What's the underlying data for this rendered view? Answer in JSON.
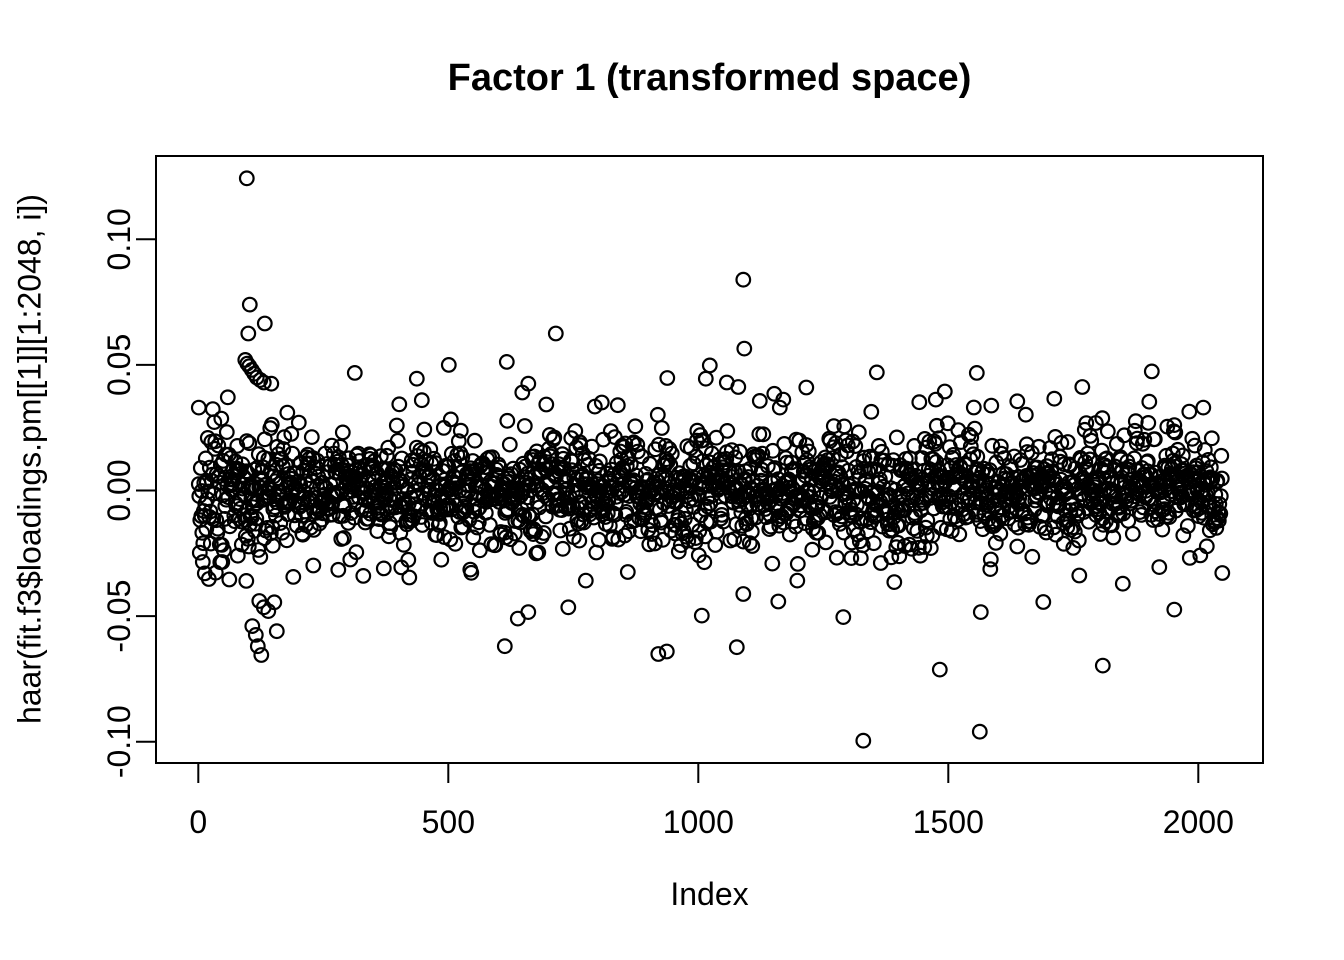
{
  "page": {
    "background": "#ffffff",
    "foreground": "#000000"
  },
  "chart_data": {
    "type": "scatter",
    "title": "Factor 1 (transformed space)",
    "xlabel": "Index",
    "ylabel": "haar(fit.f3$loadings.pm[[1]][1:2048, i])",
    "x_ticks": [
      0,
      500,
      1000,
      1500,
      2000
    ],
    "y_ticks": [
      -0.1,
      -0.05,
      0.0,
      0.05,
      0.1
    ],
    "xlim": [
      -81.9,
      2129.9
    ],
    "ylim": [
      -0.1085,
      0.1332
    ],
    "grid": false,
    "legend": "none",
    "n_points": 2048,
    "x_description": "observation index 1..2048",
    "y_description": "loadings centered on 0; dense noise band within about ±0.03, heavier spread for first ~160 indices, occasional outliers listed below",
    "marker": {
      "shape": "open-circle",
      "color": "#000000",
      "radius_px": 6.8,
      "stroke_px": 2.2
    },
    "bulk_generator": {
      "seed": 20481,
      "core_sd": 0.0095,
      "core_prob": 0.8,
      "tail_sd": 0.017,
      "tail_prob": 0.17,
      "wide_sd": 0.024,
      "wide_prob": 0.03,
      "early_boost_until": 65,
      "early_boost_factor": 1.55,
      "mid_boost_until": 160,
      "mid_boost_factor": 1.15,
      "clip": 0.0375
    },
    "outliers": [
      [
        1,
        0.033
      ],
      [
        94,
        0.052
      ],
      [
        97,
        0.1243
      ],
      [
        98,
        0.0505
      ],
      [
        100,
        0.0625
      ],
      [
        102,
        0.0495
      ],
      [
        103,
        0.074
      ],
      [
        107,
        0.048
      ],
      [
        112,
        0.0465
      ],
      [
        117,
        0.045
      ],
      [
        124,
        0.044
      ],
      [
        131,
        0.043
      ],
      [
        133,
        0.0665
      ],
      [
        146,
        0.0425
      ],
      [
        178,
        0.031
      ],
      [
        313,
        0.0468
      ],
      [
        437,
        0.0445
      ],
      [
        501,
        0.05
      ],
      [
        617,
        0.0512
      ],
      [
        648,
        0.039
      ],
      [
        660,
        0.0425
      ],
      [
        715,
        0.0625
      ],
      [
        938,
        0.0448
      ],
      [
        1015,
        0.0445
      ],
      [
        1023,
        0.0498
      ],
      [
        1057,
        0.043
      ],
      [
        1080,
        0.0412
      ],
      [
        1090,
        0.0839
      ],
      [
        1092,
        0.0565
      ],
      [
        1152,
        0.0385
      ],
      [
        1216,
        0.041
      ],
      [
        1357,
        0.047
      ],
      [
        1493,
        0.0394
      ],
      [
        1557,
        0.0468
      ],
      [
        1638,
        0.0355
      ],
      [
        1768,
        0.0412
      ],
      [
        1907,
        0.0474
      ],
      [
        2010,
        0.033
      ],
      [
        13,
        -0.033
      ],
      [
        96,
        -0.036
      ],
      [
        108,
        -0.054
      ],
      [
        115,
        -0.0575
      ],
      [
        119,
        -0.062
      ],
      [
        122,
        -0.044
      ],
      [
        126,
        -0.0655
      ],
      [
        131,
        -0.0465
      ],
      [
        140,
        -0.048
      ],
      [
        152,
        -0.0445
      ],
      [
        157,
        -0.056
      ],
      [
        330,
        -0.034
      ],
      [
        371,
        -0.031
      ],
      [
        613,
        -0.062
      ],
      [
        639,
        -0.051
      ],
      [
        660,
        -0.0484
      ],
      [
        740,
        -0.0465
      ],
      [
        920,
        -0.0651
      ],
      [
        937,
        -0.0641
      ],
      [
        1007,
        -0.0498
      ],
      [
        1077,
        -0.0624
      ],
      [
        1090,
        -0.0412
      ],
      [
        1160,
        -0.0442
      ],
      [
        1290,
        -0.0504
      ],
      [
        1330,
        -0.0996
      ],
      [
        1483,
        -0.0713
      ],
      [
        1563,
        -0.096
      ],
      [
        1565,
        -0.0484
      ],
      [
        1690,
        -0.0444
      ],
      [
        1809,
        -0.0697
      ],
      [
        1952,
        -0.0474
      ]
    ]
  }
}
